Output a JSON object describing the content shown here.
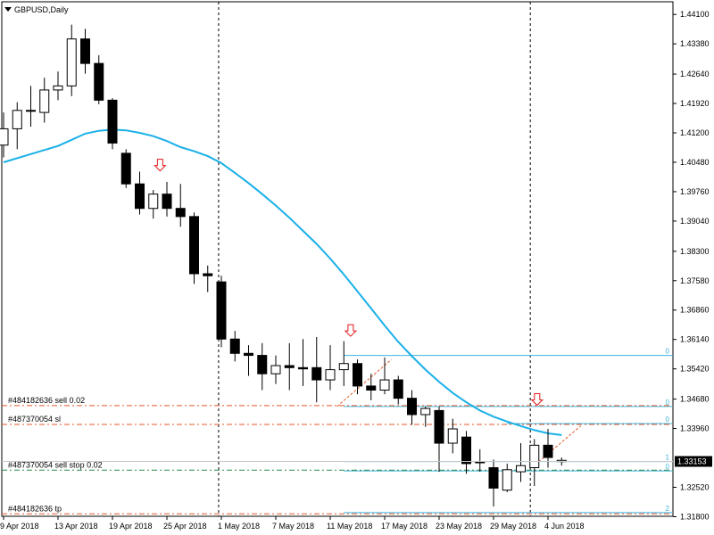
{
  "header": {
    "menu_icon": "triangle-down-icon",
    "title": "GBPUSD,Daily"
  },
  "colors": {
    "background": "#ffffff",
    "bull_fill": "#ffffff",
    "bear_fill": "#000000",
    "candle_outline": "#000000",
    "ma_line": "#1ab0e8",
    "level_cyan": "#3fb4dd",
    "order_red": "#e05a2a",
    "order_green": "#2a8a4a",
    "arrow_red": "#e3191b",
    "price_box": "#000000"
  },
  "chart_data": {
    "type": "candlestick",
    "symbol": "GBPUSD",
    "timeframe": "Daily",
    "ylim": [
      1.3181,
      1.4441
    ],
    "y_ticks": [
      "1.44100",
      "1.43380",
      "1.42640",
      "1.41920",
      "1.41200",
      "1.40480",
      "1.39760",
      "1.39040",
      "1.38300",
      "1.37580",
      "1.36860",
      "1.36140",
      "1.35420",
      "1.34680",
      "1.33960",
      "1.33153",
      "1.32520",
      "1.31800"
    ],
    "x_ticks": [
      {
        "index": 0,
        "label": "9 Apr 2018"
      },
      {
        "index": 4,
        "label": "13 Apr 2018"
      },
      {
        "index": 8,
        "label": "19 Apr 2018"
      },
      {
        "index": 12,
        "label": "25 Apr 2018"
      },
      {
        "index": 16,
        "label": "1 May 2018"
      },
      {
        "index": 20,
        "label": "7 May 2018"
      },
      {
        "index": 24,
        "label": "11 May 2018"
      },
      {
        "index": 28,
        "label": "17 May 2018"
      },
      {
        "index": 32,
        "label": "23 May 2018"
      },
      {
        "index": 36,
        "label": "29 May 2018"
      },
      {
        "index": 40,
        "label": "4 Jun 2018"
      }
    ],
    "candles": [
      {
        "o": 1.409,
        "h": 1.417,
        "l": 1.406,
        "c": 1.413
      },
      {
        "o": 1.413,
        "h": 1.4195,
        "l": 1.408,
        "c": 1.4175
      },
      {
        "o": 1.4175,
        "h": 1.4235,
        "l": 1.4135,
        "c": 1.4175
      },
      {
        "o": 1.417,
        "h": 1.4255,
        "l": 1.4145,
        "c": 1.4225
      },
      {
        "o": 1.4225,
        "h": 1.427,
        "l": 1.42,
        "c": 1.4235
      },
      {
        "o": 1.4235,
        "h": 1.4385,
        "l": 1.421,
        "c": 1.435
      },
      {
        "o": 1.435,
        "h": 1.4375,
        "l": 1.4265,
        "c": 1.429
      },
      {
        "o": 1.429,
        "h": 1.431,
        "l": 1.419,
        "c": 1.42
      },
      {
        "o": 1.42,
        "h": 1.4205,
        "l": 1.408,
        "c": 1.4095
      },
      {
        "o": 1.407,
        "h": 1.408,
        "l": 1.3985,
        "c": 1.3995
      },
      {
        "o": 1.3995,
        "h": 1.4025,
        "l": 1.392,
        "c": 1.3935
      },
      {
        "o": 1.3935,
        "h": 1.398,
        "l": 1.391,
        "c": 1.397
      },
      {
        "o": 1.397,
        "h": 1.4,
        "l": 1.3915,
        "c": 1.3935
      },
      {
        "o": 1.3935,
        "h": 1.3995,
        "l": 1.389,
        "c": 1.3915
      },
      {
        "o": 1.3915,
        "h": 1.3925,
        "l": 1.375,
        "c": 1.3775
      },
      {
        "o": 1.3775,
        "h": 1.3795,
        "l": 1.373,
        "c": 1.377
      },
      {
        "o": 1.3755,
        "h": 1.377,
        "l": 1.3595,
        "c": 1.3615
      },
      {
        "o": 1.3615,
        "h": 1.3635,
        "l": 1.356,
        "c": 1.358
      },
      {
        "o": 1.358,
        "h": 1.36,
        "l": 1.3525,
        "c": 1.3575
      },
      {
        "o": 1.3575,
        "h": 1.3605,
        "l": 1.349,
        "c": 1.353
      },
      {
        "o": 1.353,
        "h": 1.3575,
        "l": 1.3505,
        "c": 1.355
      },
      {
        "o": 1.355,
        "h": 1.3605,
        "l": 1.349,
        "c": 1.3545
      },
      {
        "o": 1.3545,
        "h": 1.3615,
        "l": 1.35,
        "c": 1.3542
      },
      {
        "o": 1.3545,
        "h": 1.362,
        "l": 1.346,
        "c": 1.3515
      },
      {
        "o": 1.3515,
        "h": 1.36,
        "l": 1.349,
        "c": 1.354
      },
      {
        "o": 1.354,
        "h": 1.361,
        "l": 1.35,
        "c": 1.3555
      },
      {
        "o": 1.3555,
        "h": 1.3565,
        "l": 1.348,
        "c": 1.35
      },
      {
        "o": 1.35,
        "h": 1.353,
        "l": 1.3465,
        "c": 1.349
      },
      {
        "o": 1.349,
        "h": 1.357,
        "l": 1.348,
        "c": 1.3515
      },
      {
        "o": 1.3515,
        "h": 1.3525,
        "l": 1.3455,
        "c": 1.347
      },
      {
        "o": 1.347,
        "h": 1.349,
        "l": 1.3405,
        "c": 1.343
      },
      {
        "o": 1.343,
        "h": 1.345,
        "l": 1.34,
        "c": 1.3445
      },
      {
        "o": 1.344,
        "h": 1.345,
        "l": 1.329,
        "c": 1.336
      },
      {
        "o": 1.336,
        "h": 1.342,
        "l": 1.3335,
        "c": 1.3395
      },
      {
        "o": 1.3375,
        "h": 1.339,
        "l": 1.3285,
        "c": 1.331
      },
      {
        "o": 1.3315,
        "h": 1.3345,
        "l": 1.329,
        "c": 1.3312
      },
      {
        "o": 1.33,
        "h": 1.332,
        "l": 1.3205,
        "c": 1.325
      },
      {
        "o": 1.3245,
        "h": 1.331,
        "l": 1.324,
        "c": 1.3295
      },
      {
        "o": 1.329,
        "h": 1.336,
        "l": 1.3265,
        "c": 1.3305
      },
      {
        "o": 1.33,
        "h": 1.337,
        "l": 1.3255,
        "c": 1.3355
      },
      {
        "o": 1.3355,
        "h": 1.3395,
        "l": 1.33,
        "c": 1.3325
      },
      {
        "o": 1.3315,
        "h": 1.3325,
        "l": 1.3305,
        "c": 1.3318
      }
    ],
    "moving_average": [
      {
        "i": 0,
        "v": 1.4048
      },
      {
        "i": 2,
        "v": 1.4068
      },
      {
        "i": 4,
        "v": 1.4088
      },
      {
        "i": 5,
        "v": 1.4103
      },
      {
        "i": 6,
        "v": 1.4118
      },
      {
        "i": 7,
        "v": 1.4125
      },
      {
        "i": 8,
        "v": 1.4128
      },
      {
        "i": 9,
        "v": 1.4126
      },
      {
        "i": 10,
        "v": 1.412
      },
      {
        "i": 11,
        "v": 1.4112
      },
      {
        "i": 12,
        "v": 1.41
      },
      {
        "i": 13,
        "v": 1.4085
      },
      {
        "i": 14,
        "v": 1.4075
      },
      {
        "i": 15,
        "v": 1.4063
      },
      {
        "i": 16,
        "v": 1.4046
      },
      {
        "i": 17,
        "v": 1.4022
      },
      {
        "i": 18,
        "v": 1.3997
      },
      {
        "i": 19,
        "v": 1.397
      },
      {
        "i": 20,
        "v": 1.3942
      },
      {
        "i": 21,
        "v": 1.3912
      },
      {
        "i": 22,
        "v": 1.388
      },
      {
        "i": 23,
        "v": 1.3848
      },
      {
        "i": 24,
        "v": 1.3812
      },
      {
        "i": 25,
        "v": 1.3773
      },
      {
        "i": 26,
        "v": 1.3732
      },
      {
        "i": 27,
        "v": 1.369
      },
      {
        "i": 28,
        "v": 1.3648
      },
      {
        "i": 29,
        "v": 1.3608
      },
      {
        "i": 30,
        "v": 1.3573
      },
      {
        "i": 31,
        "v": 1.354
      },
      {
        "i": 32,
        "v": 1.351
      },
      {
        "i": 33,
        "v": 1.3483
      },
      {
        "i": 34,
        "v": 1.346
      },
      {
        "i": 35,
        "v": 1.344
      },
      {
        "i": 36,
        "v": 1.3425
      },
      {
        "i": 37,
        "v": 1.3413
      },
      {
        "i": 38,
        "v": 1.3402
      },
      {
        "i": 39,
        "v": 1.3392
      },
      {
        "i": 40,
        "v": 1.3384
      },
      {
        "i": 41,
        "v": 1.338
      }
    ],
    "order_lines": [
      {
        "label": "#484182636 sell 0.02",
        "price": 1.3452,
        "color": "order_red",
        "dash": "6,3,2,3"
      },
      {
        "label": "#487370054 sl",
        "price": 1.3406,
        "color": "order_red",
        "dash": "6,3,2,3"
      },
      {
        "label": "#487370054 sell stop 0.02",
        "price": 1.3294,
        "color": "order_green",
        "dash": "6,3,2,3"
      },
      {
        "label": "#484182636 tp",
        "price": 1.3187,
        "color": "order_red",
        "dash": "6,3,2,3"
      }
    ],
    "levels": [
      {
        "from": 25,
        "price": 1.3575,
        "tag": "0"
      },
      {
        "from": 25,
        "price": 1.345,
        "tag": "0"
      },
      {
        "from": 37,
        "price": 1.3408,
        "tag": "0"
      },
      {
        "from": 25,
        "price": 1.3315,
        "tag": "1"
      },
      {
        "from": 25,
        "price": 1.3292,
        "tag": "0"
      },
      {
        "from": 25,
        "price": 1.319,
        "tag": "2"
      }
    ],
    "trend_segments": [
      {
        "i1": 24.5,
        "p1": 1.345,
        "i2": 28.5,
        "p2": 1.3565
      },
      {
        "i1": 38.8,
        "p1": 1.33,
        "i2": 42.4,
        "p2": 1.3402
      }
    ],
    "arrows": [
      {
        "i": 11.5,
        "p": 1.404
      },
      {
        "i": 25.5,
        "p": 1.3635
      },
      {
        "i": 39.2,
        "p": 1.3466
      }
    ],
    "vlines": [
      15.8,
      38.7
    ],
    "current_price": "1.33153",
    "current_price_value": 1.33153
  }
}
